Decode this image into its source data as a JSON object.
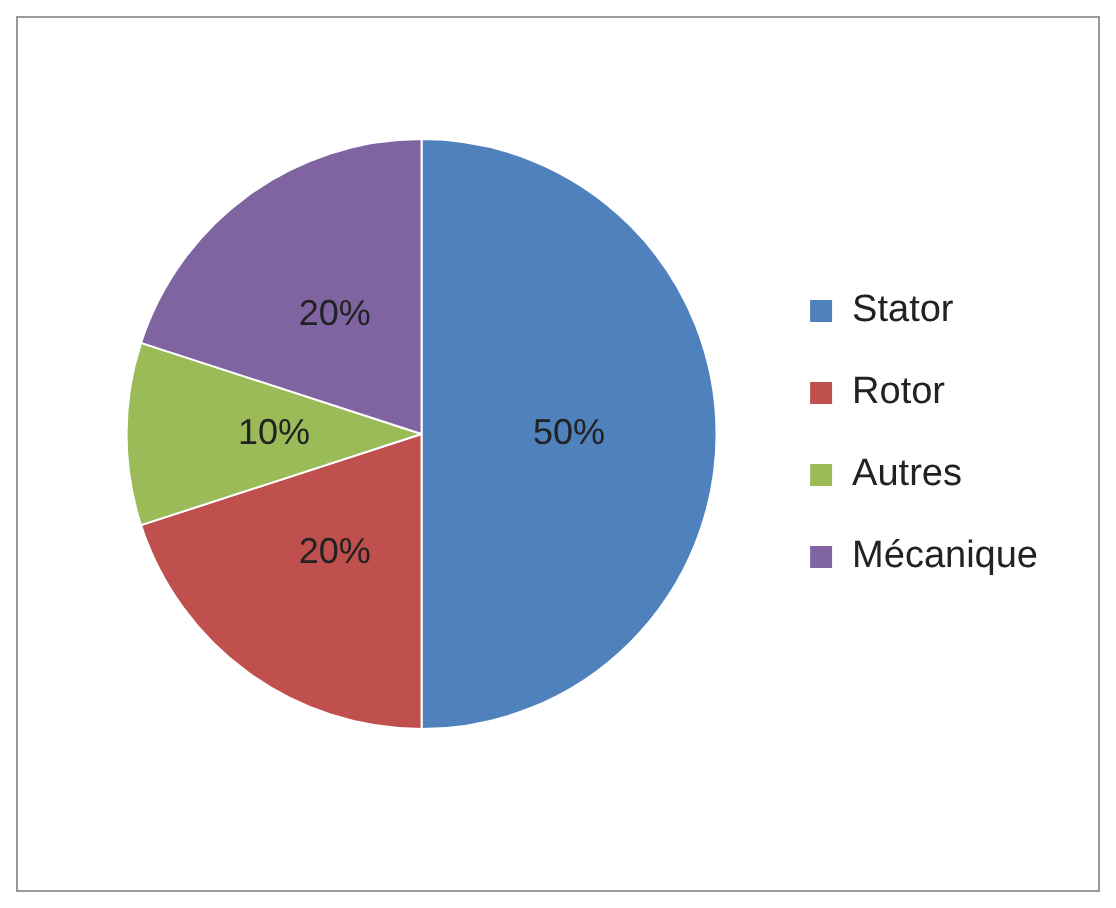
{
  "chart_data": {
    "type": "pie",
    "categories": [
      "Stator",
      "Rotor",
      "Autres",
      "Mécanique"
    ],
    "values": [
      50,
      20,
      10,
      20
    ],
    "colors": [
      "#4f81bd",
      "#c0504d",
      "#9bbb59",
      "#8064a2"
    ],
    "value_labels": [
      "50%",
      "20%",
      "10%",
      "20%"
    ],
    "legend": "right"
  }
}
